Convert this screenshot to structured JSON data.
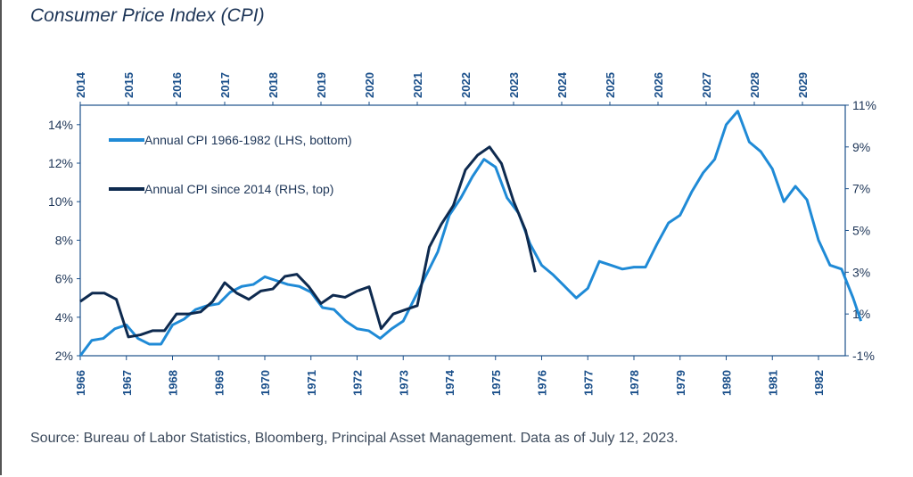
{
  "title": "Consumer Price Index (CPI)",
  "source": "Source: Bureau of Labor Statistics, Bloomberg, Principal Asset Management. Data as of July 12, 2023.",
  "chart_data": {
    "type": "line",
    "title": "Consumer Price Index (CPI)",
    "colors": {
      "lhs": "#1f8ad6",
      "rhs": "#0e2a4f",
      "axis": "#1a4f8a"
    },
    "legend": [
      "Annual CPI 1966-1982 (LHS, bottom)",
      "Annual CPI since 2014 (RHS, top)"
    ],
    "legend_placement": "top-left",
    "x_bottom": {
      "range": [
        1966,
        1983
      ],
      "ticks": [
        "1966",
        "1967",
        "1968",
        "1969",
        "1970",
        "1971",
        "1972",
        "1973",
        "1974",
        "1975",
        "1976",
        "1977",
        "1978",
        "1979",
        "1980",
        "1981",
        "1982"
      ]
    },
    "x_top": {
      "range": [
        2014,
        2030
      ],
      "ticks": [
        "2014",
        "2015",
        "2016",
        "2017",
        "2018",
        "2019",
        "2020",
        "2021",
        "2022",
        "2023",
        "2024",
        "2025",
        "2026",
        "2027",
        "2028",
        "2029"
      ]
    },
    "y_left": {
      "range": [
        2,
        15
      ],
      "ticks": [
        "2%",
        "4%",
        "6%",
        "8%",
        "10%",
        "12%",
        "14%"
      ]
    },
    "y_right": {
      "range": [
        -1,
        11
      ],
      "ticks": [
        "-1%",
        "1%",
        "3%",
        "5%",
        "7%",
        "9%",
        "11%"
      ]
    },
    "series": [
      {
        "name": "Annual CPI 1966-1982 (LHS, bottom)",
        "axis": "lhs",
        "x": [
          1966,
          1966.25,
          1966.5,
          1966.75,
          1967,
          1967.25,
          1967.5,
          1967.75,
          1968,
          1968.25,
          1968.5,
          1968.75,
          1969,
          1969.25,
          1969.5,
          1969.75,
          1970,
          1970.25,
          1970.5,
          1970.75,
          1971,
          1971.25,
          1971.5,
          1971.75,
          1972,
          1972.25,
          1972.5,
          1972.75,
          1973,
          1973.25,
          1973.5,
          1973.75,
          1974,
          1974.25,
          1974.5,
          1974.75,
          1975,
          1975.25,
          1975.5,
          1975.75,
          1976,
          1976.25,
          1976.5,
          1976.75,
          1977,
          1977.25,
          1977.5,
          1977.75,
          1978,
          1978.25,
          1978.5,
          1978.75,
          1979,
          1979.25,
          1979.5,
          1979.75,
          1980,
          1980.25,
          1980.5,
          1980.75,
          1981,
          1981.25,
          1981.5,
          1981.75,
          1982,
          1982.25,
          1982.5,
          1982.75,
          1982.92
        ],
        "y": [
          2.0,
          2.8,
          2.9,
          3.4,
          3.6,
          2.9,
          2.6,
          2.6,
          3.6,
          3.9,
          4.4,
          4.6,
          4.7,
          5.3,
          5.6,
          5.7,
          6.1,
          5.9,
          5.7,
          5.6,
          5.3,
          4.5,
          4.4,
          3.8,
          3.4,
          3.3,
          2.9,
          3.4,
          3.8,
          5.0,
          6.2,
          7.4,
          9.3,
          10.2,
          11.3,
          12.2,
          11.8,
          10.2,
          9.4,
          7.8,
          6.7,
          6.2,
          5.6,
          5.0,
          5.5,
          6.9,
          6.7,
          6.5,
          6.6,
          6.6,
          7.8,
          8.9,
          9.3,
          10.5,
          11.5,
          12.2,
          14.0,
          14.7,
          13.1,
          12.6,
          11.7,
          10.0,
          10.8,
          10.1,
          8.0,
          6.7,
          6.5,
          5.0,
          3.8
        ]
      },
      {
        "name": "Annual CPI since 2014 (RHS, top)",
        "axis": "rhs",
        "x": [
          2014,
          2014.25,
          2014.5,
          2014.75,
          2015,
          2015.25,
          2015.5,
          2015.75,
          2016,
          2016.25,
          2016.5,
          2016.75,
          2017,
          2017.25,
          2017.5,
          2017.75,
          2018,
          2018.25,
          2018.5,
          2018.75,
          2019,
          2019.25,
          2019.5,
          2019.75,
          2020,
          2020.25,
          2020.5,
          2020.75,
          2021,
          2021.25,
          2021.5,
          2021.75,
          2022,
          2022.25,
          2022.5,
          2022.75,
          2023,
          2023.25,
          2023.45
        ],
        "y": [
          1.6,
          2.0,
          2.0,
          1.7,
          -0.1,
          0.0,
          0.2,
          0.2,
          1.0,
          1.0,
          1.1,
          1.6,
          2.5,
          2.0,
          1.7,
          2.1,
          2.2,
          2.8,
          2.9,
          2.3,
          1.5,
          1.9,
          1.8,
          2.1,
          2.3,
          0.3,
          1.0,
          1.2,
          1.4,
          4.2,
          5.3,
          6.2,
          7.9,
          8.6,
          9.0,
          8.2,
          6.4,
          5.0,
          3.0
        ]
      }
    ]
  }
}
